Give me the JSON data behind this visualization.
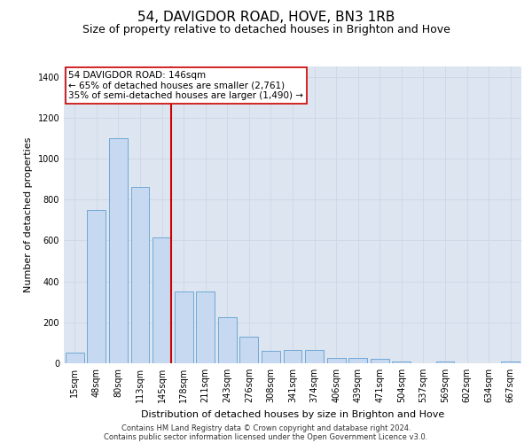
{
  "title": "54, DAVIGDOR ROAD, HOVE, BN3 1RB",
  "subtitle": "Size of property relative to detached houses in Brighton and Hove",
  "xlabel": "Distribution of detached houses by size in Brighton and Hove",
  "ylabel": "Number of detached properties",
  "footnote1": "Contains HM Land Registry data © Crown copyright and database right 2024.",
  "footnote2": "Contains public sector information licensed under the Open Government Licence v3.0.",
  "annotation_line1": "54 DAVIGDOR ROAD: 146sqm",
  "annotation_line2": "← 65% of detached houses are smaller (2,761)",
  "annotation_line3": "35% of semi-detached houses are larger (1,490) →",
  "bar_labels": [
    "15sqm",
    "48sqm",
    "80sqm",
    "113sqm",
    "145sqm",
    "178sqm",
    "211sqm",
    "243sqm",
    "276sqm",
    "308sqm",
    "341sqm",
    "374sqm",
    "406sqm",
    "439sqm",
    "471sqm",
    "504sqm",
    "537sqm",
    "569sqm",
    "602sqm",
    "634sqm",
    "667sqm"
  ],
  "bar_values": [
    50,
    750,
    1100,
    860,
    615,
    350,
    350,
    225,
    130,
    60,
    65,
    65,
    25,
    25,
    20,
    10,
    0,
    8,
    0,
    0,
    8
  ],
  "bar_color": "#c6d9f0",
  "bar_edge_color": "#6fa8d6",
  "red_line_index": 4,
  "red_line_color": "#cc0000",
  "annotation_box_color": "#cc0000",
  "ylim": [
    0,
    1450
  ],
  "yticks": [
    0,
    200,
    400,
    600,
    800,
    1000,
    1200,
    1400
  ],
  "grid_color": "#d0d8e8",
  "bg_color": "#dde5f0",
  "title_fontsize": 11,
  "subtitle_fontsize": 9,
  "axis_label_fontsize": 8,
  "tick_fontsize": 7,
  "annotation_fontsize": 7.5,
  "footnote_fontsize": 6
}
